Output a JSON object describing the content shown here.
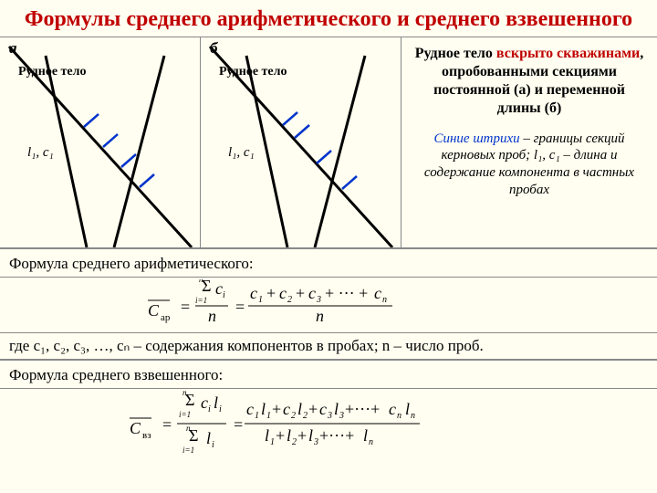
{
  "title": "Формулы среднего арифметического и среднего взвешенного",
  "panel_a": {
    "label": "а",
    "body_label": "Рудное тело",
    "lc_label": "l₁, c₁",
    "diagram": {
      "body_lines": [
        [
          50,
          20,
          95,
          230
        ],
        [
          180,
          20,
          125,
          230
        ]
      ],
      "borehole": [
        [
          10,
          10,
          210,
          230
        ]
      ],
      "ticks": [
        [
          92,
          98,
          108,
          84
        ],
        [
          113,
          120,
          129,
          106
        ],
        [
          133,
          142,
          149,
          128
        ],
        [
          153,
          164,
          169,
          150
        ]
      ],
      "line_color": "#000000",
      "tick_color": "#0033cc",
      "line_width": 3,
      "tick_width": 2.5
    }
  },
  "panel_b": {
    "label": "б",
    "body_label": "Рудное тело",
    "lc_label": "l₁, c₁",
    "diagram": {
      "body_lines": [
        [
          50,
          20,
          95,
          230
        ],
        [
          180,
          20,
          125,
          230
        ]
      ],
      "borehole": [
        [
          10,
          10,
          210,
          230
        ]
      ],
      "ticks": [
        [
          90,
          96,
          106,
          82
        ],
        [
          103,
          110,
          119,
          96
        ],
        [
          127,
          138,
          143,
          124
        ],
        [
          155,
          166,
          171,
          152
        ]
      ],
      "line_color": "#000000",
      "tick_color": "#0033cc",
      "line_width": 3,
      "tick_width": 2.5
    }
  },
  "description": {
    "main_pre": "Рудное тело ",
    "main_hl": "вскрыто скважинами",
    "main_post": ", опробованными секциями постоянной (а) и переменной длины (б)",
    "caption_blue": "Синие штрихи",
    "caption_rest": " – границы секций керновых проб; l₁, c₁ – длина и содержание компонента в частных пробах"
  },
  "formula1": {
    "heading": "Формула среднего арифметического:",
    "where": "где c₁, c₂, c₃, …, cₙ – содержания компонентов в пробах; n – число проб."
  },
  "formula2": {
    "heading": "Формула среднего взвешенного:"
  },
  "colors": {
    "bg": "#fffef0",
    "title": "#c00000",
    "blue": "#0033cc",
    "rule": "#888888"
  }
}
